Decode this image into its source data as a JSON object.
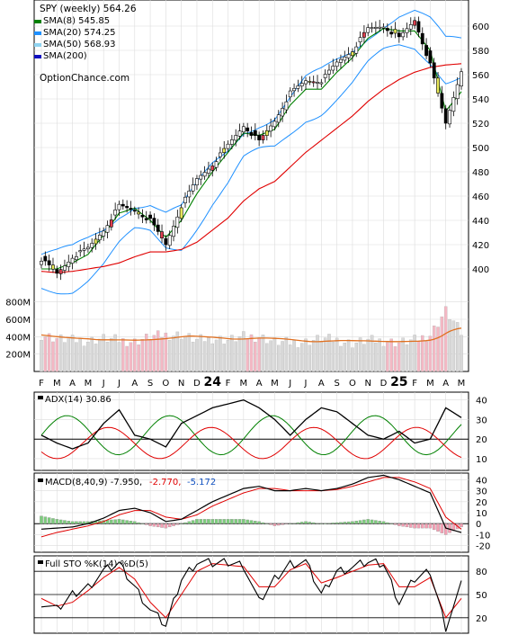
{
  "header": {
    "title": "SPY (weekly) 564.26",
    "watermark": "OptionChance.com",
    "legend": [
      {
        "label": "SMA(8) 545.85",
        "color": "#008000"
      },
      {
        "label": "SMA(20) 574.25",
        "color": "#1e90ff"
      },
      {
        "label": "SMA(50) 568.93",
        "color": "#8fd3f0"
      },
      {
        "label": "SMA(200)",
        "color": "#1010c0"
      }
    ]
  },
  "x_axis": {
    "labels": [
      "F",
      "M",
      "A",
      "M",
      "J",
      "J",
      "A",
      "S",
      "O",
      "N",
      "D",
      "24",
      "F",
      "M",
      "A",
      "M",
      "J",
      "J",
      "A",
      "S",
      "O",
      "N",
      "D",
      "25",
      "F",
      "M",
      "A",
      "M"
    ],
    "bold_labels": [
      "24",
      "25"
    ]
  },
  "panels": {
    "price": {
      "ticks": [
        "400",
        "420",
        "440",
        "460",
        "480",
        "500",
        "520",
        "540",
        "560",
        "580",
        "600"
      ],
      "range": [
        380,
        620
      ]
    },
    "volume": {
      "ticks": [
        "200M",
        "400M",
        "600M",
        "800M"
      ],
      "range": [
        0,
        900
      ]
    },
    "adx": {
      "label": "ADX(14) 30.86",
      "ticks": [
        "10",
        "20",
        "30",
        "40"
      ],
      "range": [
        4,
        44
      ]
    },
    "macd": {
      "label": "MACD(8,40,9) -7.950,",
      "value_1": "-2.770,",
      "value_2": "-5.172",
      "value_1_color": "#e00000",
      "value_2_color": "#1050c0",
      "ticks": [
        "-20",
        "-10",
        "0",
        "10",
        "20",
        "30",
        "40"
      ],
      "range": [
        -26,
        46
      ]
    },
    "sto": {
      "label": "Full STO %K(14) %D(5)",
      "ticks": [
        "20",
        "50",
        "80"
      ],
      "range": [
        0,
        100
      ]
    }
  },
  "colors": {
    "up_candle": "#ffffff",
    "down_candle": "#000000",
    "hl_up": "#e8e85a",
    "hl_down": "#e04050",
    "hl_brown": "#9060a0",
    "sma8": "#008000",
    "sma20": "#1e90ff",
    "sma50": "#e00000",
    "bb": "#1e90ff",
    "vol_up": "#d8d8d8",
    "vol_down": "#f4b8c4",
    "vol_ma": "#e07020",
    "adx": "#000000",
    "diplus": "#008000",
    "diminus": "#e00000",
    "macd_line": "#000000",
    "signal_line": "#e00000",
    "hist_pos": "#7ccc7c",
    "hist_neg": "#f4a0b4"
  },
  "chart_data": {
    "type": "line",
    "x": [
      "2023-02",
      "2023-03",
      "2023-04",
      "2023-05",
      "2023-06",
      "2023-07",
      "2023-08",
      "2023-09",
      "2023-10",
      "2023-11",
      "2023-12",
      "2024-01",
      "2024-02",
      "2024-03",
      "2024-04",
      "2024-05",
      "2024-06",
      "2024-07",
      "2024-08",
      "2024-09",
      "2024-10",
      "2024-11",
      "2024-12",
      "2025-01",
      "2025-02",
      "2025-03",
      "2025-04",
      "2025-05"
    ],
    "series": [
      {
        "name": "SPY (weekly)",
        "values": [
          408,
          396,
          410,
          417,
          432,
          452,
          448,
          440,
          420,
          452,
          474,
          486,
          502,
          518,
          505,
          522,
          545,
          555,
          555,
          570,
          580,
          598,
          600,
          590,
          605,
          568,
          520,
          564
        ]
      },
      {
        "name": "SMA(8)",
        "values": [
          400,
          400,
          405,
          412,
          428,
          446,
          450,
          440,
          426,
          440,
          462,
          480,
          496,
          512,
          510,
          515,
          535,
          548,
          548,
          562,
          574,
          590,
          598,
          596,
          596,
          580,
          530,
          546
        ]
      },
      {
        "name": "SMA(20)",
        "values": [
          398,
          398,
          400,
          408,
          418,
          432,
          442,
          442,
          432,
          434,
          452,
          470,
          484,
          502,
          508,
          512,
          526,
          540,
          546,
          556,
          566,
          580,
          590,
          596,
          597,
          588,
          572,
          574
        ]
      },
      {
        "name": "SMA(50)",
        "values": [
          398,
          397,
          398,
          400,
          402,
          405,
          410,
          414,
          414,
          416,
          422,
          432,
          442,
          456,
          466,
          472,
          484,
          496,
          506,
          516,
          526,
          538,
          548,
          556,
          562,
          566,
          568,
          569
        ]
      }
    ],
    "volume_series": [
      {
        "name": "Volume",
        "values": [
          420,
          380,
          360,
          350,
          380,
          360,
          340,
          400,
          420,
          420,
          360,
          380,
          360,
          400,
          400,
          340,
          330,
          340,
          380,
          360,
          320,
          360,
          350,
          330,
          360,
          420,
          700,
          440
        ]
      }
    ],
    "adx_series": [
      {
        "name": "ADX(14)",
        "values": [
          22,
          18,
          15,
          18,
          28,
          35,
          22,
          20,
          16,
          28,
          32,
          36,
          38,
          40,
          36,
          30,
          22,
          30,
          36,
          34,
          28,
          22,
          20,
          24,
          18,
          20,
          36,
          31
        ]
      }
    ],
    "macd_series": [
      {
        "name": "MACD",
        "values": [
          -5,
          -4,
          -3,
          0,
          5,
          12,
          14,
          10,
          2,
          4,
          12,
          20,
          26,
          32,
          34,
          30,
          30,
          32,
          30,
          32,
          36,
          42,
          44,
          40,
          34,
          28,
          -4,
          -8
        ]
      },
      {
        "name": "Signal",
        "values": [
          -12,
          -8,
          -5,
          -2,
          2,
          8,
          12,
          12,
          6,
          4,
          8,
          16,
          22,
          28,
          32,
          32,
          30,
          30,
          30,
          31,
          34,
          38,
          42,
          42,
          38,
          32,
          6,
          -5
        ]
      }
    ],
    "sto_series": [
      {
        "name": "%K",
        "values": [
          40,
          30,
          50,
          60,
          80,
          90,
          60,
          30,
          10,
          70,
          92,
          90,
          92,
          88,
          40,
          70,
          90,
          92,
          50,
          80,
          85,
          92,
          90,
          40,
          70,
          80,
          8,
          62
        ]
      },
      {
        "name": "%D",
        "values": [
          45,
          35,
          40,
          55,
          72,
          85,
          70,
          40,
          20,
          50,
          80,
          90,
          88,
          86,
          60,
          60,
          82,
          90,
          65,
          72,
          80,
          88,
          90,
          60,
          60,
          72,
          20,
          45
        ]
      }
    ]
  }
}
